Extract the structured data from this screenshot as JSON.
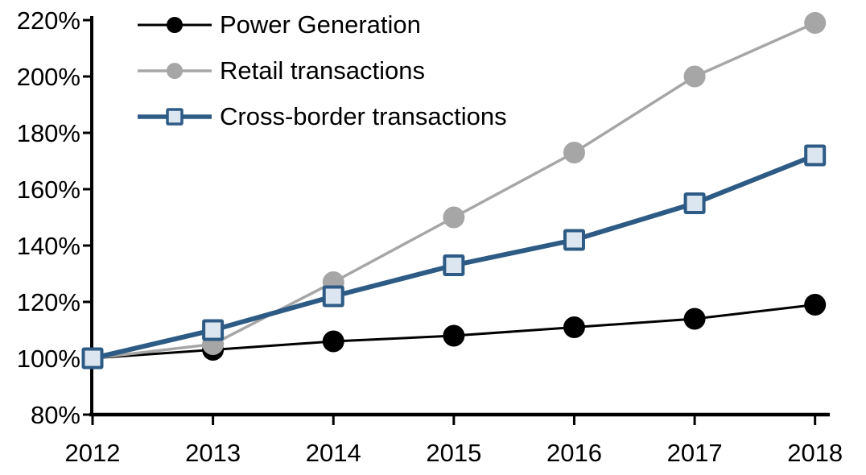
{
  "background_color": "#FFFFFF",
  "chart_data": {
    "type": "line",
    "title": "",
    "xlabel": "",
    "ylabel": "",
    "grid": false,
    "legend_position": "top-left-inside",
    "x_labels": [
      "2012",
      "2013",
      "2014",
      "2015",
      "2016",
      "2017",
      "2018"
    ],
    "y_axis": {
      "min": 80,
      "max": 220,
      "step": 20,
      "unit": "%",
      "tick_labels": [
        "80%",
        "100%",
        "120%",
        "140%",
        "160%",
        "180%",
        "200%",
        "220%"
      ]
    },
    "series": [
      {
        "name": "Power Generation",
        "color": "#000000",
        "marker": "circle",
        "marker_fill": "#000000",
        "line_width": 3,
        "values": [
          100,
          103,
          106,
          108,
          111,
          114,
          119
        ]
      },
      {
        "name": "Retail transactions",
        "color": "#A6A6A6",
        "marker": "circle",
        "marker_fill": "#A6A6A6",
        "line_width": 3.5,
        "values": [
          100,
          105,
          127,
          150,
          173,
          200,
          219
        ]
      },
      {
        "name": "Cross-border transactions",
        "color": "#2D5B85",
        "marker": "square",
        "marker_fill": "#DCE6F1",
        "line_width": 6,
        "values": [
          100,
          110,
          122,
          133,
          142,
          155,
          172
        ]
      }
    ]
  }
}
